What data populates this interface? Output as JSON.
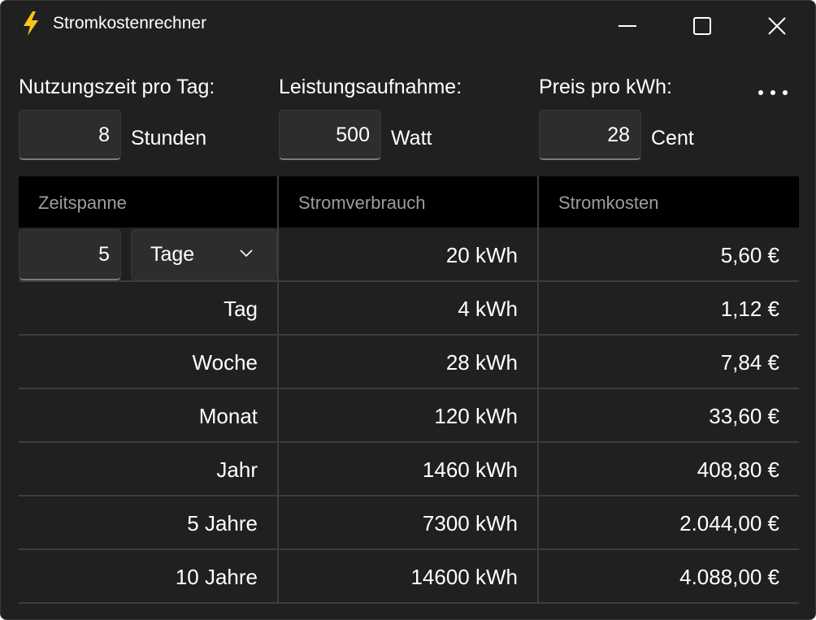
{
  "window": {
    "title": "Stromkostenrechner",
    "icon": "lightning-icon",
    "controls": [
      "minimize-icon",
      "maximize-icon",
      "close-icon"
    ]
  },
  "inputs": {
    "usage_time": {
      "label": "Nutzungszeit pro Tag:",
      "value": "8",
      "unit": "Stunden"
    },
    "power": {
      "label": "Leistungsaufnahme:",
      "value": "500",
      "unit": "Watt"
    },
    "price": {
      "label": "Preis pro kWh:",
      "value": "28",
      "unit": "Cent"
    },
    "more_icon": "more-icon"
  },
  "table": {
    "headers": [
      "Zeitspanne",
      "Stromverbrauch",
      "Stromkosten"
    ],
    "custom_row": {
      "amount": "5",
      "unit_selected": "Tage",
      "consumption": "20 kWh",
      "cost": "5,60 €"
    },
    "rows": [
      {
        "period": "Tag",
        "consumption": "4 kWh",
        "cost": "1,12 €"
      },
      {
        "period": "Woche",
        "consumption": "28 kWh",
        "cost": "7,84 €"
      },
      {
        "period": "Monat",
        "consumption": "120 kWh",
        "cost": "33,60 €"
      },
      {
        "period": "Jahr",
        "consumption": "1460 kWh",
        "cost": "408,80 €"
      },
      {
        "period": "5 Jahre",
        "consumption": "7300 kWh",
        "cost": "2.044,00 €"
      },
      {
        "period": "10 Jahre",
        "consumption": "14600 kWh",
        "cost": "4.088,00 €"
      }
    ]
  },
  "colors": {
    "window_bg": "#202020",
    "header_bg": "#000000",
    "input_bg": "#2d2d2d",
    "grid_line": "#3d3d3d",
    "header_text": "#9d9d9d",
    "icon_accent": "#fcc419"
  }
}
